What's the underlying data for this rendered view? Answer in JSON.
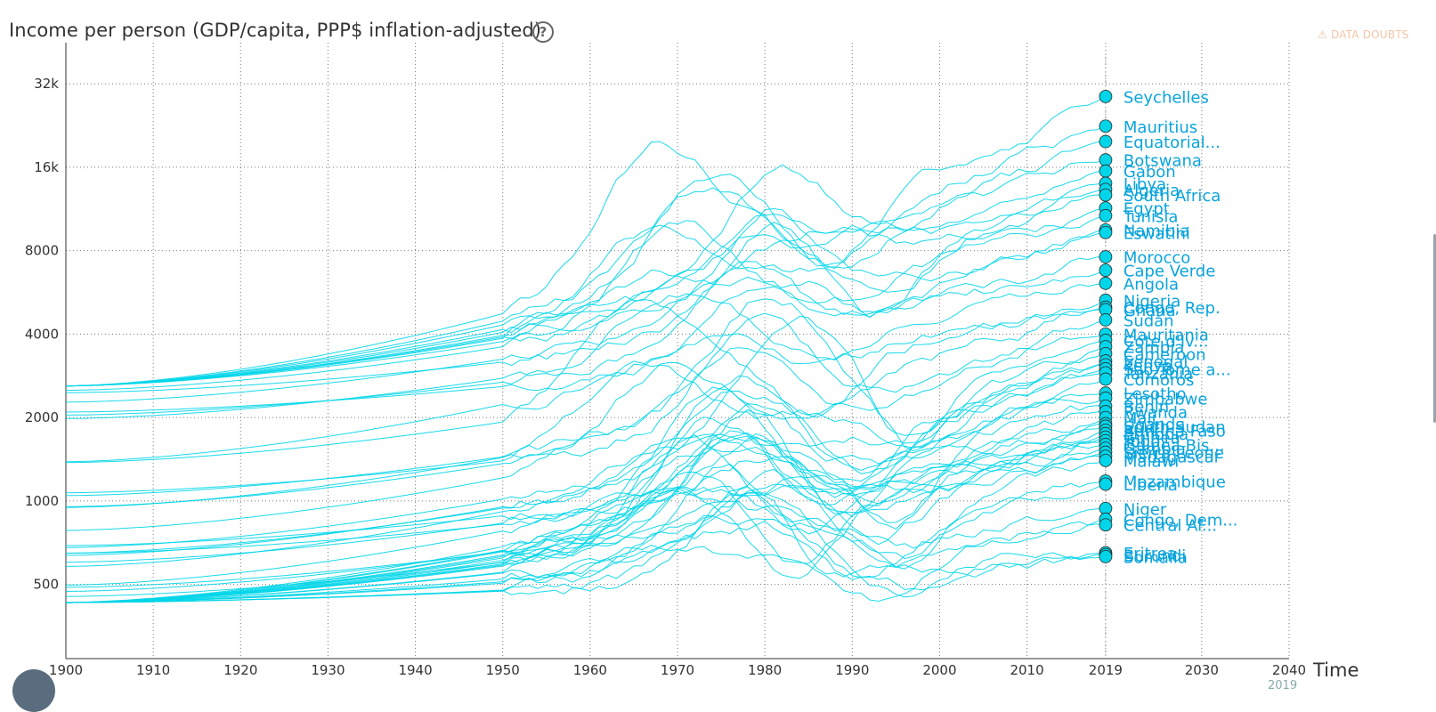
{
  "header": {
    "title": "Income per person (GDP/capita, PPP$ inflation-adjusted)",
    "help_icon": "question-circle-icon",
    "doubts_label": "DATA DOUBTS",
    "doubts_icon": "warning-icon"
  },
  "timeslider": {
    "value": "2019"
  },
  "chart_data": {
    "type": "line",
    "title": "Income per person (GDP/capita, PPP$ inflation-adjusted)",
    "xlabel": "Time",
    "ylabel": "",
    "xlim": [
      1900,
      2040
    ],
    "ylim": [
      270,
      45000
    ],
    "y_scale": "log",
    "grid": true,
    "x_ticks": [
      "1900",
      "1910",
      "1920",
      "1930",
      "1940",
      "1950",
      "1960",
      "1970",
      "1980",
      "1990",
      "2000",
      "2010",
      "2019",
      "2030",
      "2040"
    ],
    "y_ticks": [
      {
        "v": 500,
        "label": "500"
      },
      {
        "v": 1000,
        "label": "1000"
      },
      {
        "v": 2000,
        "label": "2000"
      },
      {
        "v": 4000,
        "label": "4000"
      },
      {
        "v": 8000,
        "label": "8000"
      },
      {
        "v": 16000,
        "label": "16k"
      },
      {
        "v": 32000,
        "label": "32k"
      }
    ],
    "current_year": 2019,
    "series_color": "#00d5e9",
    "label_color": "#0aa4dd",
    "series": [
      {
        "name": "Seychelles",
        "value_2019": 28800
      },
      {
        "name": "Mauritius",
        "value_2019": 22500
      },
      {
        "name": "Equatorial...",
        "value_2019": 19800
      },
      {
        "name": "Botswana",
        "value_2019": 17000
      },
      {
        "name": "Gabon",
        "value_2019": 15500
      },
      {
        "name": "Libya",
        "value_2019": 14000
      },
      {
        "name": "Algeria",
        "value_2019": 13300
      },
      {
        "name": "South Africa",
        "value_2019": 12700
      },
      {
        "name": "Egypt",
        "value_2019": 11400
      },
      {
        "name": "Tunisia",
        "value_2019": 10700
      },
      {
        "name": "Namibia",
        "value_2019": 9500
      },
      {
        "name": "Eswatini",
        "value_2019": 9300
      },
      {
        "name": "Morocco",
        "value_2019": 7600
      },
      {
        "name": "Cape Verde",
        "value_2019": 6800
      },
      {
        "name": "Angola",
        "value_2019": 6100
      },
      {
        "name": "Nigeria",
        "value_2019": 5300
      },
      {
        "name": "Congo, Rep.",
        "value_2019": 5000
      },
      {
        "name": "Ghana",
        "value_2019": 4900
      },
      {
        "name": "Sudan",
        "value_2019": 4500
      },
      {
        "name": "Mauritania",
        "value_2019": 4000
      },
      {
        "name": "Cote d'Iv...",
        "value_2019": 3800
      },
      {
        "name": "Zambia",
        "value_2019": 3600
      },
      {
        "name": "Cameroon",
        "value_2019": 3400
      },
      {
        "name": "Senegal",
        "value_2019": 3200
      },
      {
        "name": "Kenya",
        "value_2019": 3100
      },
      {
        "name": "Sao Tome a...",
        "value_2019": 3000
      },
      {
        "name": "Tanzania",
        "value_2019": 2900
      },
      {
        "name": "Comoros",
        "value_2019": 2750
      },
      {
        "name": "Lesotho",
        "value_2019": 2450
      },
      {
        "name": "Zimbabwe",
        "value_2019": 2350
      },
      {
        "name": "Benin",
        "value_2019": 2200
      },
      {
        "name": "Rwanda",
        "value_2019": 2100
      },
      {
        "name": "Mali",
        "value_2019": 2000
      },
      {
        "name": "Uganda",
        "value_2019": 1900
      },
      {
        "name": "South Sudan",
        "value_2019": 1860
      },
      {
        "name": "Burkina Faso",
        "value_2019": 1800
      },
      {
        "name": "Ethiopia",
        "value_2019": 1750
      },
      {
        "name": "Guinea",
        "value_2019": 1700
      },
      {
        "name": "Togo",
        "value_2019": 1650
      },
      {
        "name": "Guinea-Bis...",
        "value_2019": 1600
      },
      {
        "name": "Gambia",
        "value_2019": 1550
      },
      {
        "name": "Sierra Leone",
        "value_2019": 1500
      },
      {
        "name": "Madagascar",
        "value_2019": 1450
      },
      {
        "name": "Malawi",
        "value_2019": 1400
      },
      {
        "name": "Mozambique",
        "value_2019": 1180
      },
      {
        "name": "Liberia",
        "value_2019": 1150
      },
      {
        "name": "Niger",
        "value_2019": 940
      },
      {
        "name": "Congo, Dem...",
        "value_2019": 860
      },
      {
        "name": "Central Af...",
        "value_2019": 820
      },
      {
        "name": "Eritrea",
        "value_2019": 650
      },
      {
        "name": "Burundi",
        "value_2019": 640
      },
      {
        "name": "Somalia",
        "value_2019": 630
      }
    ]
  }
}
